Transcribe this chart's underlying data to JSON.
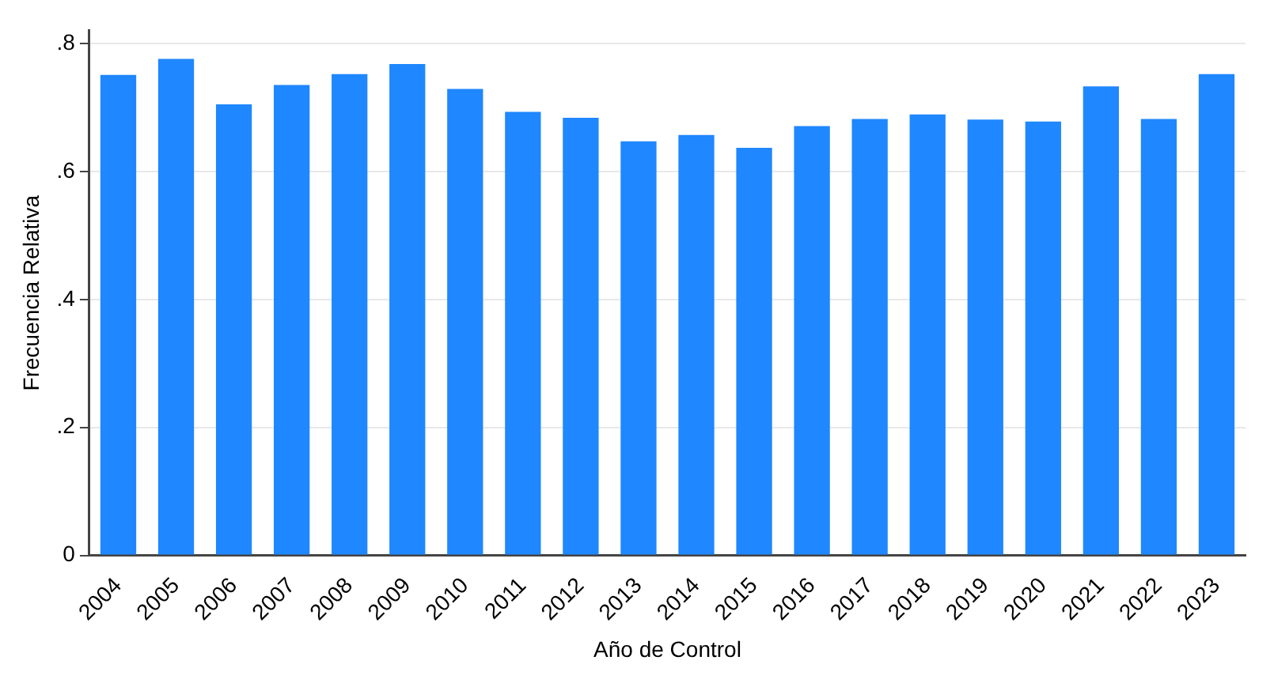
{
  "chart_data": {
    "type": "bar",
    "xlabel": "Año de Control",
    "ylabel": "Frecuencia Relativa",
    "categories": [
      "2004",
      "2005",
      "2006",
      "2007",
      "2008",
      "2009",
      "2010",
      "2011",
      "2012",
      "2013",
      "2014",
      "2015",
      "2016",
      "2017",
      "2018",
      "2019",
      "2020",
      "2021",
      "2022",
      "2023"
    ],
    "values": [
      0.751,
      0.776,
      0.705,
      0.735,
      0.752,
      0.768,
      0.729,
      0.693,
      0.684,
      0.647,
      0.657,
      0.637,
      0.671,
      0.682,
      0.689,
      0.681,
      0.678,
      0.733,
      0.682,
      0.752
    ],
    "color": "#1f87ff",
    "ylim": [
      0,
      0.82
    ],
    "yticks": [
      0,
      {
        "value": 0.2,
        "label": ".2"
      },
      {
        "value": 0.4,
        "label": ".4"
      },
      {
        "value": 0.6,
        "label": ".6"
      },
      {
        "value": 0.8,
        "label": ".8"
      }
    ],
    "grid": "y"
  }
}
